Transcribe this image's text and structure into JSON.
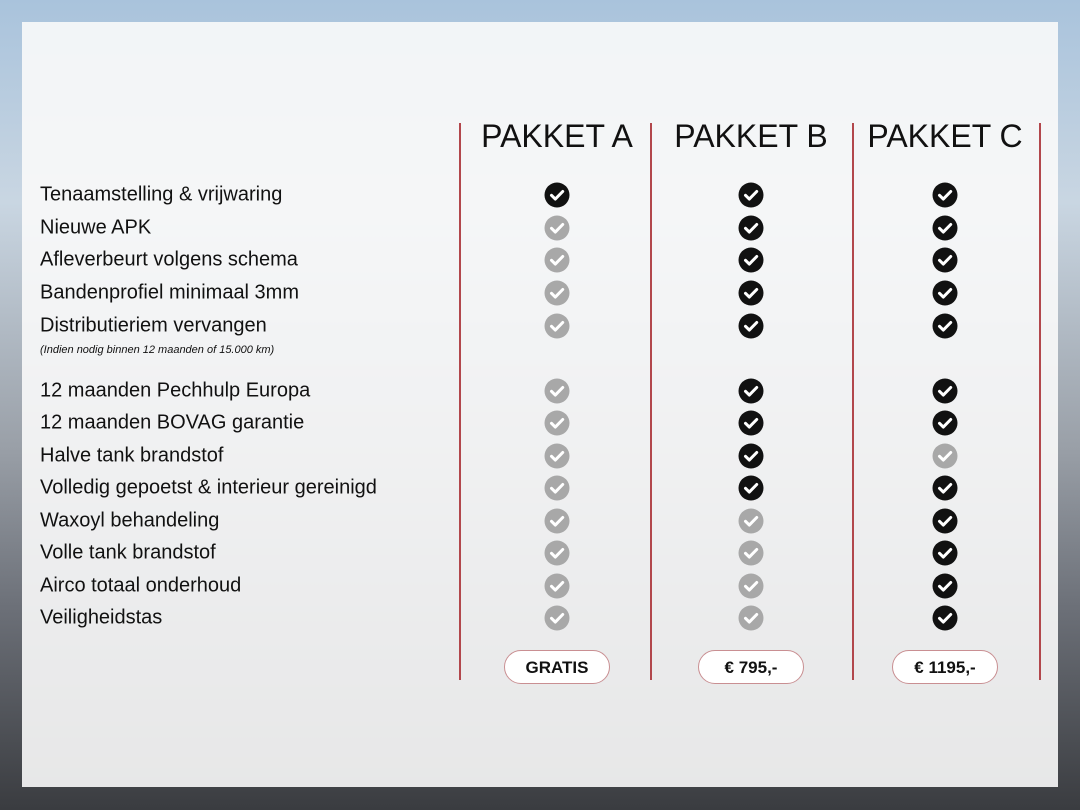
{
  "packages": [
    {
      "name": "PAKKET A",
      "price": "GRATIS"
    },
    {
      "name": "PAKKET B",
      "price": "€ 795,-"
    },
    {
      "name": "PAKKET C",
      "price": "€ 1195,-"
    }
  ],
  "features": [
    {
      "label": "Tenaamstelling & vrijwaring",
      "included": [
        true,
        true,
        true
      ]
    },
    {
      "label": "Nieuwe APK",
      "included": [
        false,
        true,
        true
      ]
    },
    {
      "label": "Afleverbeurt volgens schema",
      "included": [
        false,
        true,
        true
      ]
    },
    {
      "label": "Bandenprofiel minimaal 3mm",
      "included": [
        false,
        true,
        true
      ]
    },
    {
      "label": "Distributieriem vervangen",
      "included": [
        false,
        true,
        true
      ]
    },
    {
      "label": "12 maanden Pechhulp Europa",
      "included": [
        false,
        true,
        true
      ]
    },
    {
      "label": "12 maanden BOVAG garantie",
      "included": [
        false,
        true,
        true
      ]
    },
    {
      "label": "Halve tank brandstof",
      "included": [
        false,
        true,
        false
      ]
    },
    {
      "label": "Volledig gepoetst & interieur gereinigd",
      "included": [
        false,
        true,
        true
      ]
    },
    {
      "label": "Waxoyl behandeling",
      "included": [
        false,
        false,
        true
      ]
    },
    {
      "label": "Volle tank brandstof",
      "included": [
        false,
        false,
        true
      ]
    },
    {
      "label": "Airco totaal onderhoud",
      "included": [
        false,
        false,
        true
      ]
    },
    {
      "label": "Veiligheidstas",
      "included": [
        false,
        false,
        true
      ]
    }
  ],
  "distributie_note": "(Indien nodig binnen 12 maanden of 15.000 km)",
  "icons": {
    "included": "check-circle-icon",
    "excluded": "check-circle-icon-grey"
  },
  "colors": {
    "included": "#111111",
    "excluded": "#a8a8a8",
    "divider": "#b2474c"
  }
}
